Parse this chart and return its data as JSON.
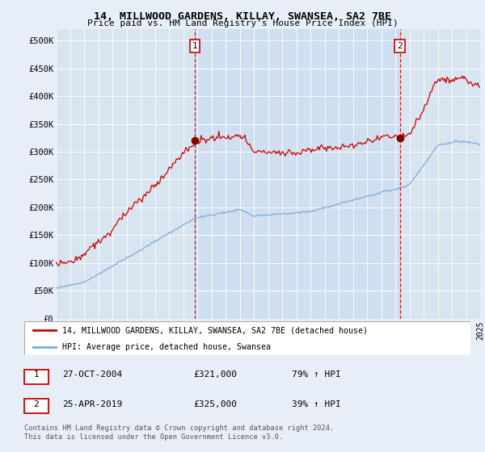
{
  "title": "14, MILLWOOD GARDENS, KILLAY, SWANSEA, SA2 7BE",
  "subtitle": "Price paid vs. HM Land Registry's House Price Index (HPI)",
  "background_color": "#e8eef8",
  "plot_bg_color": "#d8e4f0",
  "highlight_bg_color": "#ccdcef",
  "ylabel_format": "£{0}K",
  "yticks": [
    0,
    50000,
    100000,
    150000,
    200000,
    250000,
    300000,
    350000,
    400000,
    450000,
    500000
  ],
  "ytick_labels": [
    "£0",
    "£50K",
    "£100K",
    "£150K",
    "£200K",
    "£250K",
    "£300K",
    "£350K",
    "£400K",
    "£450K",
    "£500K"
  ],
  "sale1_date_num": 2004.82,
  "sale1_price": 321000,
  "sale1_label": "27-OCT-2004",
  "sale1_pct": "79% ↑ HPI",
  "sale2_date_num": 2019.32,
  "sale2_price": 325000,
  "sale2_label": "25-APR-2019",
  "sale2_pct": "39% ↑ HPI",
  "red_line_color": "#cc0000",
  "blue_line_color": "#7aaddb",
  "dashed_line_color": "#cc0000",
  "legend_label_red": "14, MILLWOOD GARDENS, KILLAY, SWANSEA, SA2 7BE (detached house)",
  "legend_label_blue": "HPI: Average price, detached house, Swansea",
  "footer": "Contains HM Land Registry data © Crown copyright and database right 2024.\nThis data is licensed under the Open Government Licence v3.0.",
  "annotation1": "1",
  "annotation2": "2",
  "xmin": 1995.0,
  "xmax": 2025.0
}
